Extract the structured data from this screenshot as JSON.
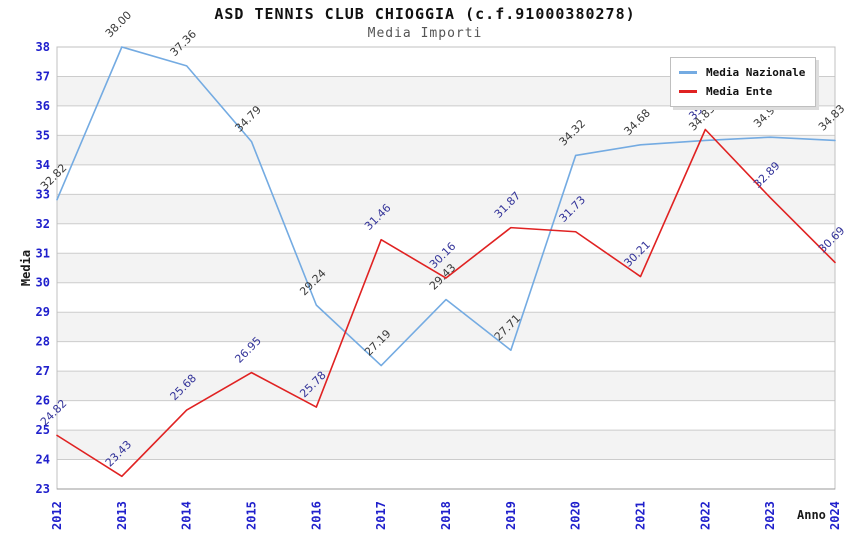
{
  "chart_data": {
    "type": "line",
    "title": "ASD TENNIS CLUB CHIOGGIA (c.f.91000380278)",
    "subtitle": "Media Importi",
    "xlabel": "Anno",
    "ylabel": "Media",
    "categories": [
      "2012",
      "2013",
      "2014",
      "2015",
      "2016",
      "2017",
      "2018",
      "2019",
      "2020",
      "2021",
      "2022",
      "2023",
      "2024"
    ],
    "ylim": [
      23,
      38
    ],
    "ytick_step": 1,
    "grid": true,
    "legend_position": "top-right",
    "series": [
      {
        "name": "Media Nazionale",
        "color": "#74ABE2",
        "label_color": "#3A3A3A",
        "values": [
          32.82,
          38.0,
          37.36,
          34.79,
          29.24,
          27.19,
          29.43,
          27.71,
          34.32,
          34.68,
          34.83,
          34.94,
          34.83
        ]
      },
      {
        "name": "Media Ente",
        "color": "#E02222",
        "label_color": "#333399",
        "values": [
          24.82,
          23.43,
          25.68,
          26.95,
          25.78,
          31.46,
          30.16,
          31.87,
          31.73,
          30.21,
          35.2,
          32.89,
          30.69
        ]
      }
    ],
    "colors": {
      "axis_tick_label": "#2020CC",
      "axis_title": "#1a1a1a",
      "grid_line": "#cccccc",
      "band_fill": "#f3f3f3",
      "plot_border": "#c0c0c0",
      "bottom_axis": "#999999"
    }
  }
}
